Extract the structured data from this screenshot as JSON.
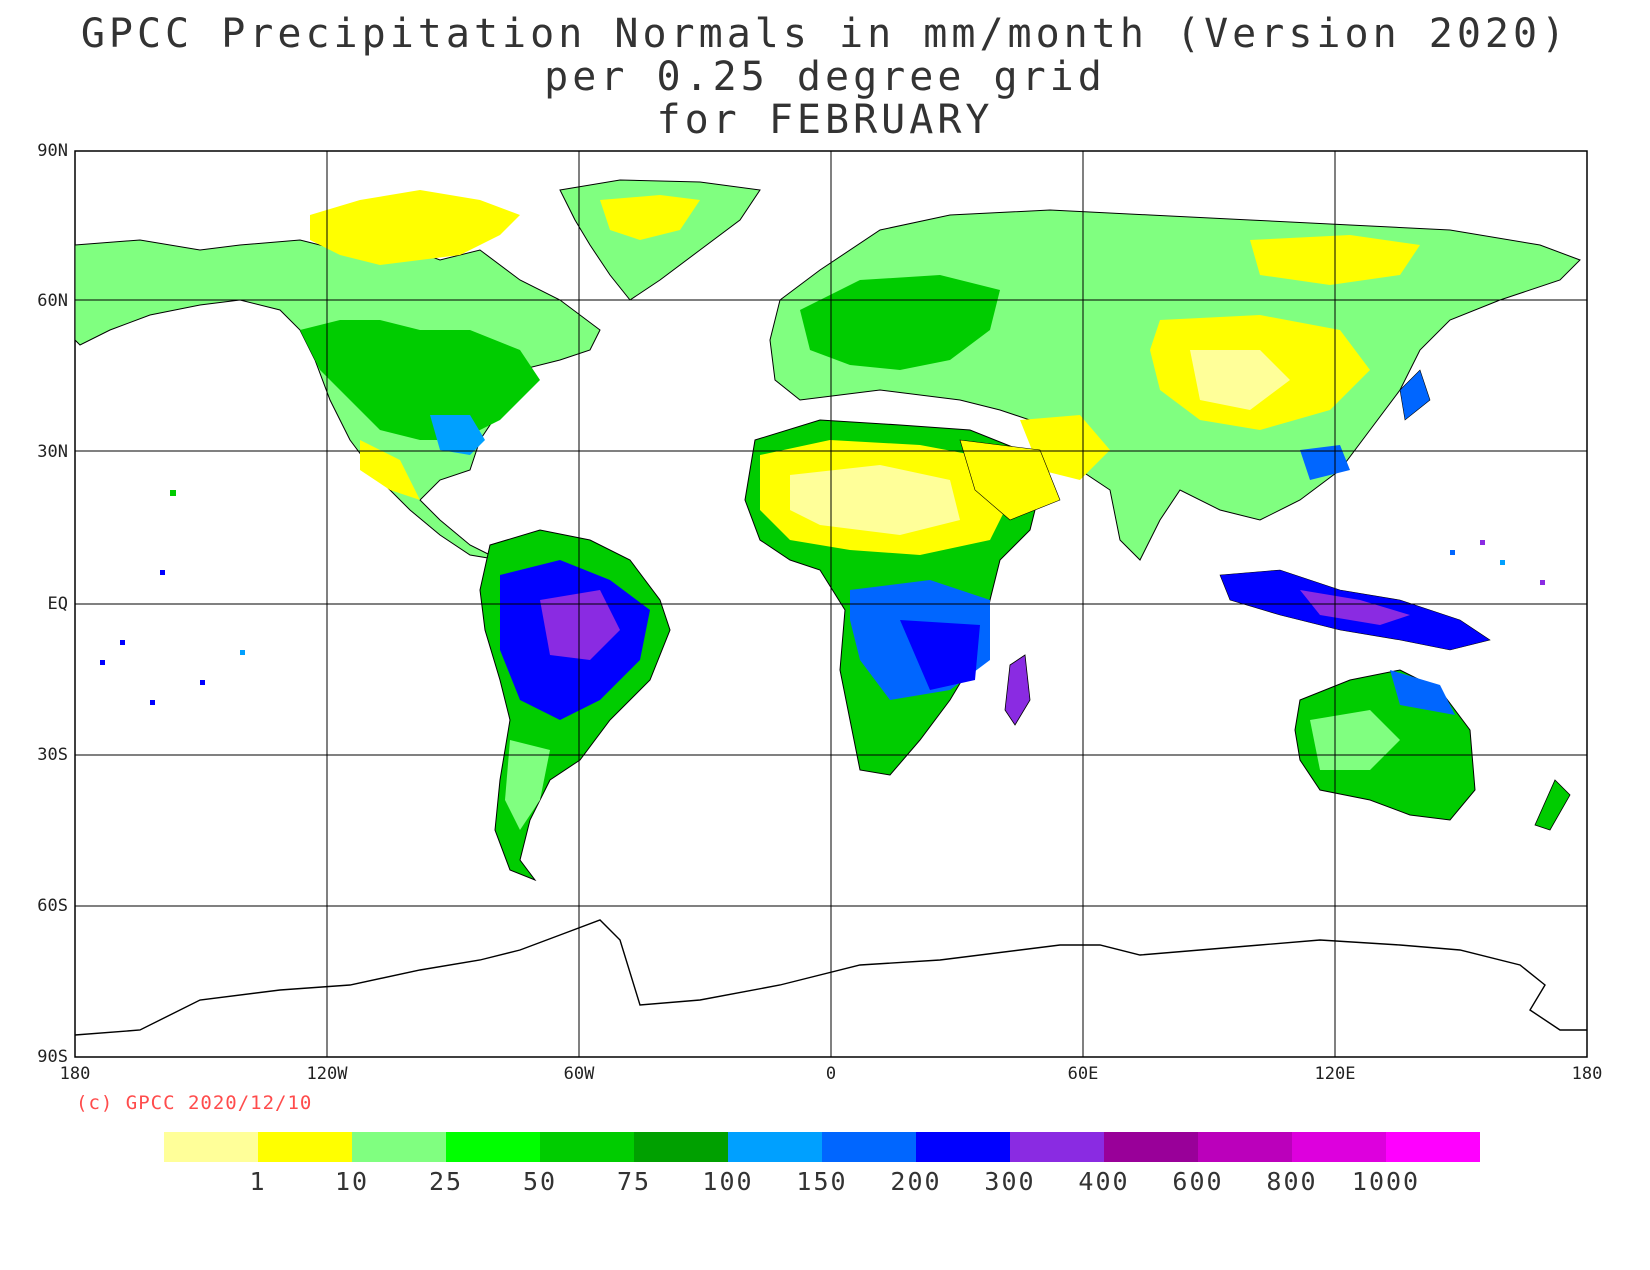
{
  "titles": {
    "line1": "GPCC Precipitation Normals in mm/month (Version 2020)",
    "line2": "per 0.25 degree grid",
    "line3": "for FEBRUARY"
  },
  "copyright": "(c) GPCC 2020/12/10",
  "axes": {
    "lat_labels": [
      "90N",
      "60N",
      "30N",
      "EQ",
      "30S",
      "60S",
      "90S"
    ],
    "lon_labels": [
      "180",
      "120W",
      "60W",
      "0",
      "60E",
      "120E",
      "180"
    ]
  },
  "legend": {
    "colors": [
      "#ffff99",
      "#ffff00",
      "#80ff80",
      "#00ff00",
      "#00cc00",
      "#00a000",
      "#00a0ff",
      "#0066ff",
      "#0000ff",
      "#8a2be2",
      "#990099",
      "#bb00bb",
      "#dd00dd",
      "#ff00ff"
    ],
    "labels": [
      "1",
      "10",
      "25",
      "50",
      "75",
      "100",
      "150",
      "200",
      "300",
      "400",
      "600",
      "800",
      "1000"
    ]
  },
  "chart_data": {
    "type": "heatmap",
    "title": "GPCC Precipitation Normals in mm/month (Version 2020)",
    "subtitle": "per 0.25 degree grid for FEBRUARY",
    "units": "mm/month",
    "x_range": [
      -180,
      180
    ],
    "y_range": [
      -90,
      90
    ],
    "grid": true,
    "levels": [
      1,
      10,
      25,
      50,
      75,
      100,
      150,
      200,
      300,
      400,
      600,
      800,
      1000
    ]
  }
}
